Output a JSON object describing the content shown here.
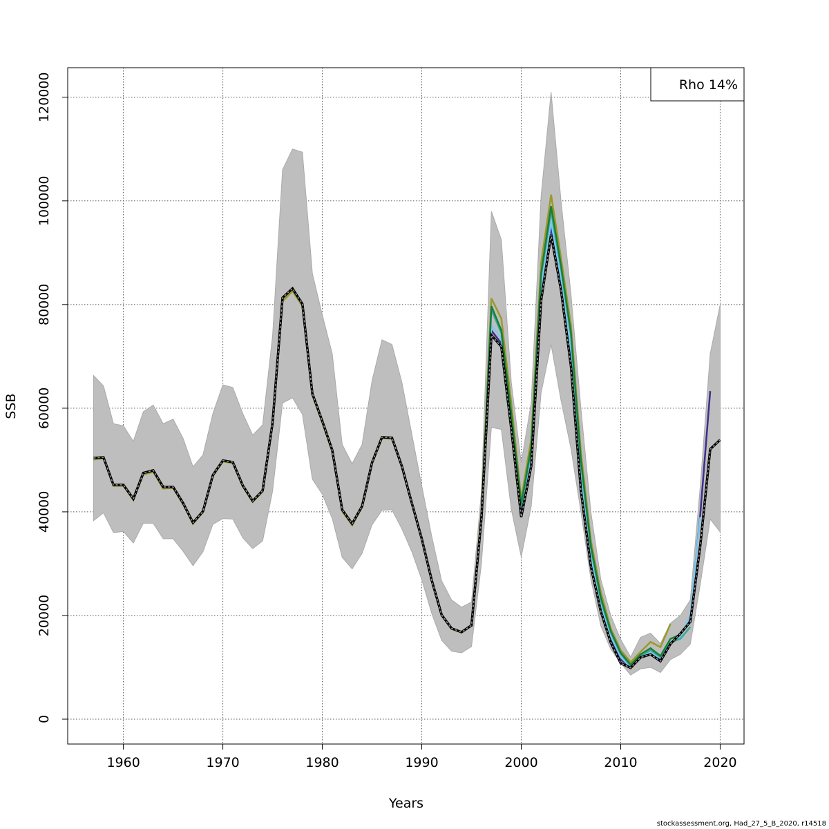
{
  "chart_data": {
    "type": "line",
    "title": "",
    "xlabel": "Years",
    "ylabel": "SSB",
    "xlim": [
      1954.4,
      2022.4
    ],
    "ylim": [
      -4800,
      125700
    ],
    "x_ticks": [
      1960,
      1970,
      1980,
      1990,
      2000,
      2010,
      2020
    ],
    "y_ticks": [
      0,
      20000,
      40000,
      60000,
      80000,
      100000,
      120000
    ],
    "grid": true,
    "legend": {
      "text": "Rho 14%",
      "placement": "top-right"
    },
    "x_start": 1957,
    "band": {
      "color": "#bebebe",
      "upper": [
        66300,
        64300,
        57000,
        56600,
        53600,
        59300,
        60600,
        57000,
        57900,
        54200,
        48700,
        51000,
        59000,
        64500,
        64000,
        59000,
        54800,
        56800,
        74000,
        106000,
        110000,
        109400,
        86000,
        78000,
        70500,
        53000,
        49300,
        53000,
        65300,
        73200,
        72300,
        65000,
        55000,
        45000,
        35300,
        26700,
        23000,
        21600,
        22600,
        44000,
        98000,
        92500,
        65000,
        49500,
        61000,
        101000,
        121000,
        100000,
        82000,
        60000,
        40000,
        27000,
        20000,
        15400,
        12000,
        15800,
        16600,
        14600,
        18500,
        20000,
        23000,
        45000,
        70500,
        80000
      ],
      "lower": [
        38300,
        39800,
        36000,
        36200,
        34000,
        37800,
        37800,
        34800,
        34800,
        32400,
        29600,
        32300,
        37600,
        38700,
        38600,
        35000,
        32900,
        34400,
        44000,
        61000,
        62000,
        58800,
        46300,
        43400,
        38700,
        31200,
        29000,
        32000,
        37500,
        40300,
        40400,
        36700,
        32300,
        26900,
        20400,
        15200,
        13100,
        12800,
        14000,
        30000,
        56300,
        55900,
        40500,
        31300,
        41000,
        63000,
        72300,
        61500,
        52200,
        40000,
        27000,
        18000,
        13500,
        10800,
        8500,
        9700,
        10000,
        9000,
        11500,
        12500,
        14500,
        26000,
        38600,
        36100
      ]
    },
    "series": [
      {
        "color": "#3b2f8f",
        "values": [
          50400,
          50500,
          45200,
          45200,
          42500,
          47500,
          48000,
          44800,
          44800,
          41700,
          37900,
          40100,
          47100,
          49900,
          49600,
          45100,
          42100,
          44100,
          57200,
          81300,
          83100,
          80100,
          62800,
          57500,
          51900,
          40400,
          37700,
          41100,
          49500,
          54400,
          54300,
          48800,
          41700,
          34800,
          26800,
          20100,
          17500,
          16800,
          18100,
          38900,
          75000,
          72500,
          57000,
          39500,
          49500,
          82000,
          95000,
          84000,
          70000,
          46000,
          30500,
          21500,
          15500,
          11500,
          10000,
          12000,
          12700,
          11600,
          14600,
          16200,
          19500,
          39500,
          63300
        ]
      },
      {
        "color": "#7ac8f0",
        "values": [
          50400,
          50500,
          45200,
          45200,
          42500,
          47500,
          48000,
          44800,
          44800,
          41700,
          37900,
          40100,
          47100,
          49900,
          49600,
          45100,
          42100,
          44100,
          57200,
          81300,
          83100,
          80100,
          62800,
          57500,
          51900,
          40400,
          37700,
          41100,
          49500,
          54400,
          54300,
          48800,
          41700,
          34800,
          26800,
          20100,
          17500,
          16800,
          18100,
          39000,
          76000,
          73500,
          57500,
          40000,
          50500,
          83000,
          96000,
          85000,
          71000,
          47000,
          31500,
          22000,
          16000,
          12000,
          10000,
          12000,
          12800,
          11800,
          14800,
          16000,
          20000,
          39000
        ]
      },
      {
        "color": "#3aa89a",
        "values": [
          50400,
          50500,
          45200,
          45200,
          42500,
          47500,
          48000,
          44800,
          44800,
          41700,
          37900,
          40100,
          47100,
          49900,
          49600,
          45100,
          42100,
          44100,
          57200,
          81300,
          83100,
          80100,
          62800,
          57500,
          51900,
          40400,
          37700,
          41100,
          49500,
          54400,
          54300,
          48800,
          41700,
          34800,
          26800,
          20100,
          17500,
          16800,
          18100,
          39300,
          79000,
          74500,
          58500,
          41000,
          52000,
          85500,
          98000,
          87000,
          74000,
          49500,
          33000,
          23000,
          16800,
          12600,
          10300,
          12200,
          13300,
          12000,
          14800,
          15500,
          17800
        ]
      },
      {
        "color": "#9a9a2a",
        "values": [
          50100,
          50300,
          45000,
          45000,
          42300,
          47200,
          47700,
          44500,
          44600,
          41500,
          37700,
          39900,
          46900,
          49700,
          49400,
          44900,
          41900,
          43900,
          57000,
          80600,
          82600,
          79700,
          62500,
          57200,
          51600,
          40100,
          37400,
          40900,
          49300,
          54200,
          54100,
          48600,
          41500,
          34700,
          26700,
          20000,
          17400,
          16700,
          18000,
          40000,
          81200,
          77300,
          61000,
          42500,
          54000,
          88000,
          101200,
          89000,
          76000,
          51500,
          34500,
          24500,
          17500,
          13300,
          11000,
          13000,
          14900,
          13900,
          18400
        ]
      },
      {
        "color": "#1a7f3a",
        "values": [
          50400,
          50600,
          45200,
          45200,
          42500,
          47500,
          48000,
          44800,
          44800,
          41700,
          37900,
          40100,
          47100,
          49900,
          49600,
          45100,
          42100,
          44100,
          57200,
          81300,
          83100,
          80100,
          62800,
          57500,
          51900,
          40400,
          37700,
          41100,
          49500,
          54400,
          54300,
          48800,
          41700,
          34800,
          26800,
          20100,
          17500,
          16800,
          18100,
          39500,
          79700,
          75000,
          59000,
          41500,
          52500,
          86000,
          99000,
          87500,
          74500,
          50000,
          33500,
          23500,
          17000,
          12800,
          10500,
          12500,
          13700,
          12200,
          15500,
          16300
        ]
      },
      {
        "color": "#000000",
        "dashed": true,
        "values": [
          50400,
          50500,
          45200,
          45200,
          42500,
          47500,
          48000,
          44800,
          44800,
          41700,
          37900,
          40100,
          47100,
          49900,
          49600,
          45100,
          42100,
          44100,
          57200,
          81300,
          83100,
          80100,
          62800,
          57500,
          51900,
          40400,
          37700,
          41100,
          49500,
          54400,
          54300,
          48800,
          41700,
          34800,
          26800,
          20100,
          17500,
          16800,
          18100,
          38800,
          74100,
          71900,
          56000,
          39000,
          48800,
          80800,
          93500,
          82800,
          68100,
          44100,
          29500,
          20800,
          14800,
          10800,
          9900,
          11900,
          12500,
          11200,
          14500,
          16500,
          18800,
          33500,
          52100,
          53900
        ]
      }
    ]
  },
  "footer": "stockassessment.org, Had_27_5_B_2020, r14518"
}
